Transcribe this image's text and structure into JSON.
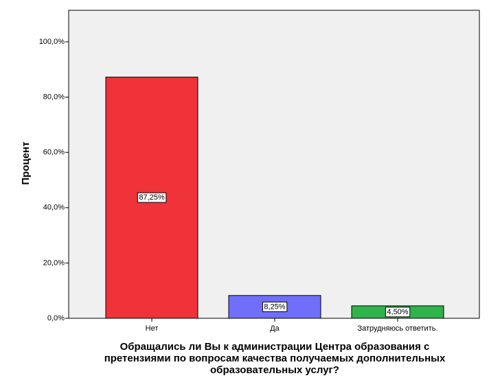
{
  "chart_data": {
    "type": "bar",
    "y_label": "Процент",
    "x_label": [
      "Обращались ли Вы к администрации Центра образования с",
      "претензиями по вопросам качества получаемых дополнительных",
      "образовательных услуг?"
    ],
    "categories": [
      "Нет",
      "Да",
      "Затрудняюсь ответить."
    ],
    "values": [
      87.25,
      8.25,
      4.5
    ],
    "value_labels": [
      "87,25%",
      "8,25%",
      "4,50%"
    ],
    "colors": [
      "#ef3339",
      "#6f6ffb",
      "#2fb34b"
    ],
    "ylim": [
      0,
      111.4
    ],
    "yticks": [
      {
        "value": 0,
        "label": "0,0%"
      },
      {
        "value": 20,
        "label": "20,0%"
      },
      {
        "value": 40,
        "label": "40,0%"
      },
      {
        "value": 60,
        "label": "60,0%"
      },
      {
        "value": 80,
        "label": "80,0%"
      },
      {
        "value": 100,
        "label": "100,0%"
      }
    ]
  }
}
